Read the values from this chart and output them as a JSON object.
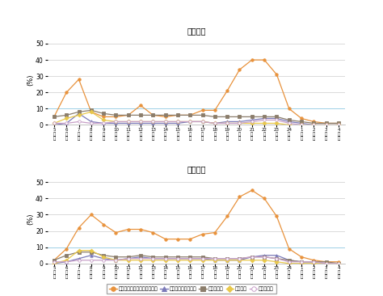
{
  "title_weekday": "《平日》",
  "title_holiday": "《休日》",
  "ylabel": "(%)",
  "hour_nums": [
    "5",
    "6",
    "7",
    "8",
    "9",
    "10",
    "11",
    "12",
    "13",
    "14",
    "15",
    "16",
    "17",
    "18",
    "19",
    "20",
    "21",
    "22",
    "23",
    "24",
    "1",
    "2",
    "3",
    "4"
  ],
  "weekday": {
    "tv_realtime": [
      5,
      20,
      28,
      8,
      5,
      5,
      6,
      12,
      6,
      5,
      6,
      6,
      9,
      9,
      21,
      34,
      40,
      40,
      31,
      10,
      4,
      2,
      1,
      1
    ],
    "tv_recorded": [
      0,
      1,
      7,
      2,
      1,
      1,
      1,
      1,
      1,
      1,
      1,
      2,
      2,
      1,
      2,
      2,
      3,
      4,
      4,
      2,
      1,
      0,
      0,
      0
    ],
    "internet": [
      5,
      6,
      8,
      9,
      7,
      6,
      6,
      6,
      6,
      6,
      6,
      6,
      6,
      5,
      5,
      5,
      5,
      5,
      5,
      3,
      2,
      1,
      1,
      1
    ],
    "newspaper": [
      1,
      4,
      6,
      8,
      3,
      2,
      2,
      2,
      2,
      2,
      2,
      2,
      2,
      1,
      1,
      1,
      1,
      1,
      1,
      0,
      0,
      0,
      0,
      0
    ],
    "radio": [
      1,
      1,
      2,
      1,
      1,
      2,
      2,
      2,
      2,
      2,
      2,
      2,
      2,
      1,
      1,
      1,
      2,
      3,
      3,
      1,
      0,
      0,
      0,
      0
    ]
  },
  "holiday": {
    "tv_realtime": [
      2,
      9,
      22,
      30,
      24,
      19,
      21,
      21,
      19,
      15,
      15,
      15,
      18,
      19,
      29,
      41,
      45,
      40,
      29,
      9,
      4,
      2,
      1,
      1
    ],
    "tv_recorded": [
      0,
      1,
      3,
      5,
      3,
      2,
      3,
      4,
      3,
      3,
      3,
      3,
      3,
      2,
      2,
      2,
      4,
      5,
      5,
      2,
      1,
      1,
      0,
      0
    ],
    "internet": [
      2,
      5,
      7,
      7,
      5,
      4,
      4,
      5,
      4,
      4,
      4,
      4,
      4,
      3,
      3,
      3,
      4,
      4,
      3,
      2,
      1,
      1,
      1,
      0
    ],
    "newspaper": [
      0,
      2,
      8,
      8,
      4,
      2,
      2,
      2,
      2,
      2,
      2,
      2,
      2,
      2,
      2,
      2,
      2,
      2,
      1,
      0,
      0,
      0,
      0,
      0
    ],
    "radio": [
      1,
      1,
      2,
      2,
      2,
      2,
      3,
      3,
      3,
      3,
      3,
      3,
      3,
      3,
      3,
      3,
      4,
      4,
      3,
      1,
      1,
      1,
      0,
      0
    ]
  },
  "colors": {
    "tv_realtime": "#e8923c",
    "tv_recorded": "#7b7ab8",
    "internet": "#8b7d6b",
    "newspaper": "#e8c84b",
    "radio": "#c8a0c8"
  },
  "legend_labels": [
    "テレビ（リアルタイム）視聴",
    "テレビ（録画）視聴",
    "ネット利用",
    "新聆読読",
    "ラジオ聴取"
  ],
  "ylim": [
    0,
    55
  ],
  "yticks": [
    0,
    10,
    20,
    30,
    40,
    50
  ],
  "background_color": "#f5f5f5"
}
